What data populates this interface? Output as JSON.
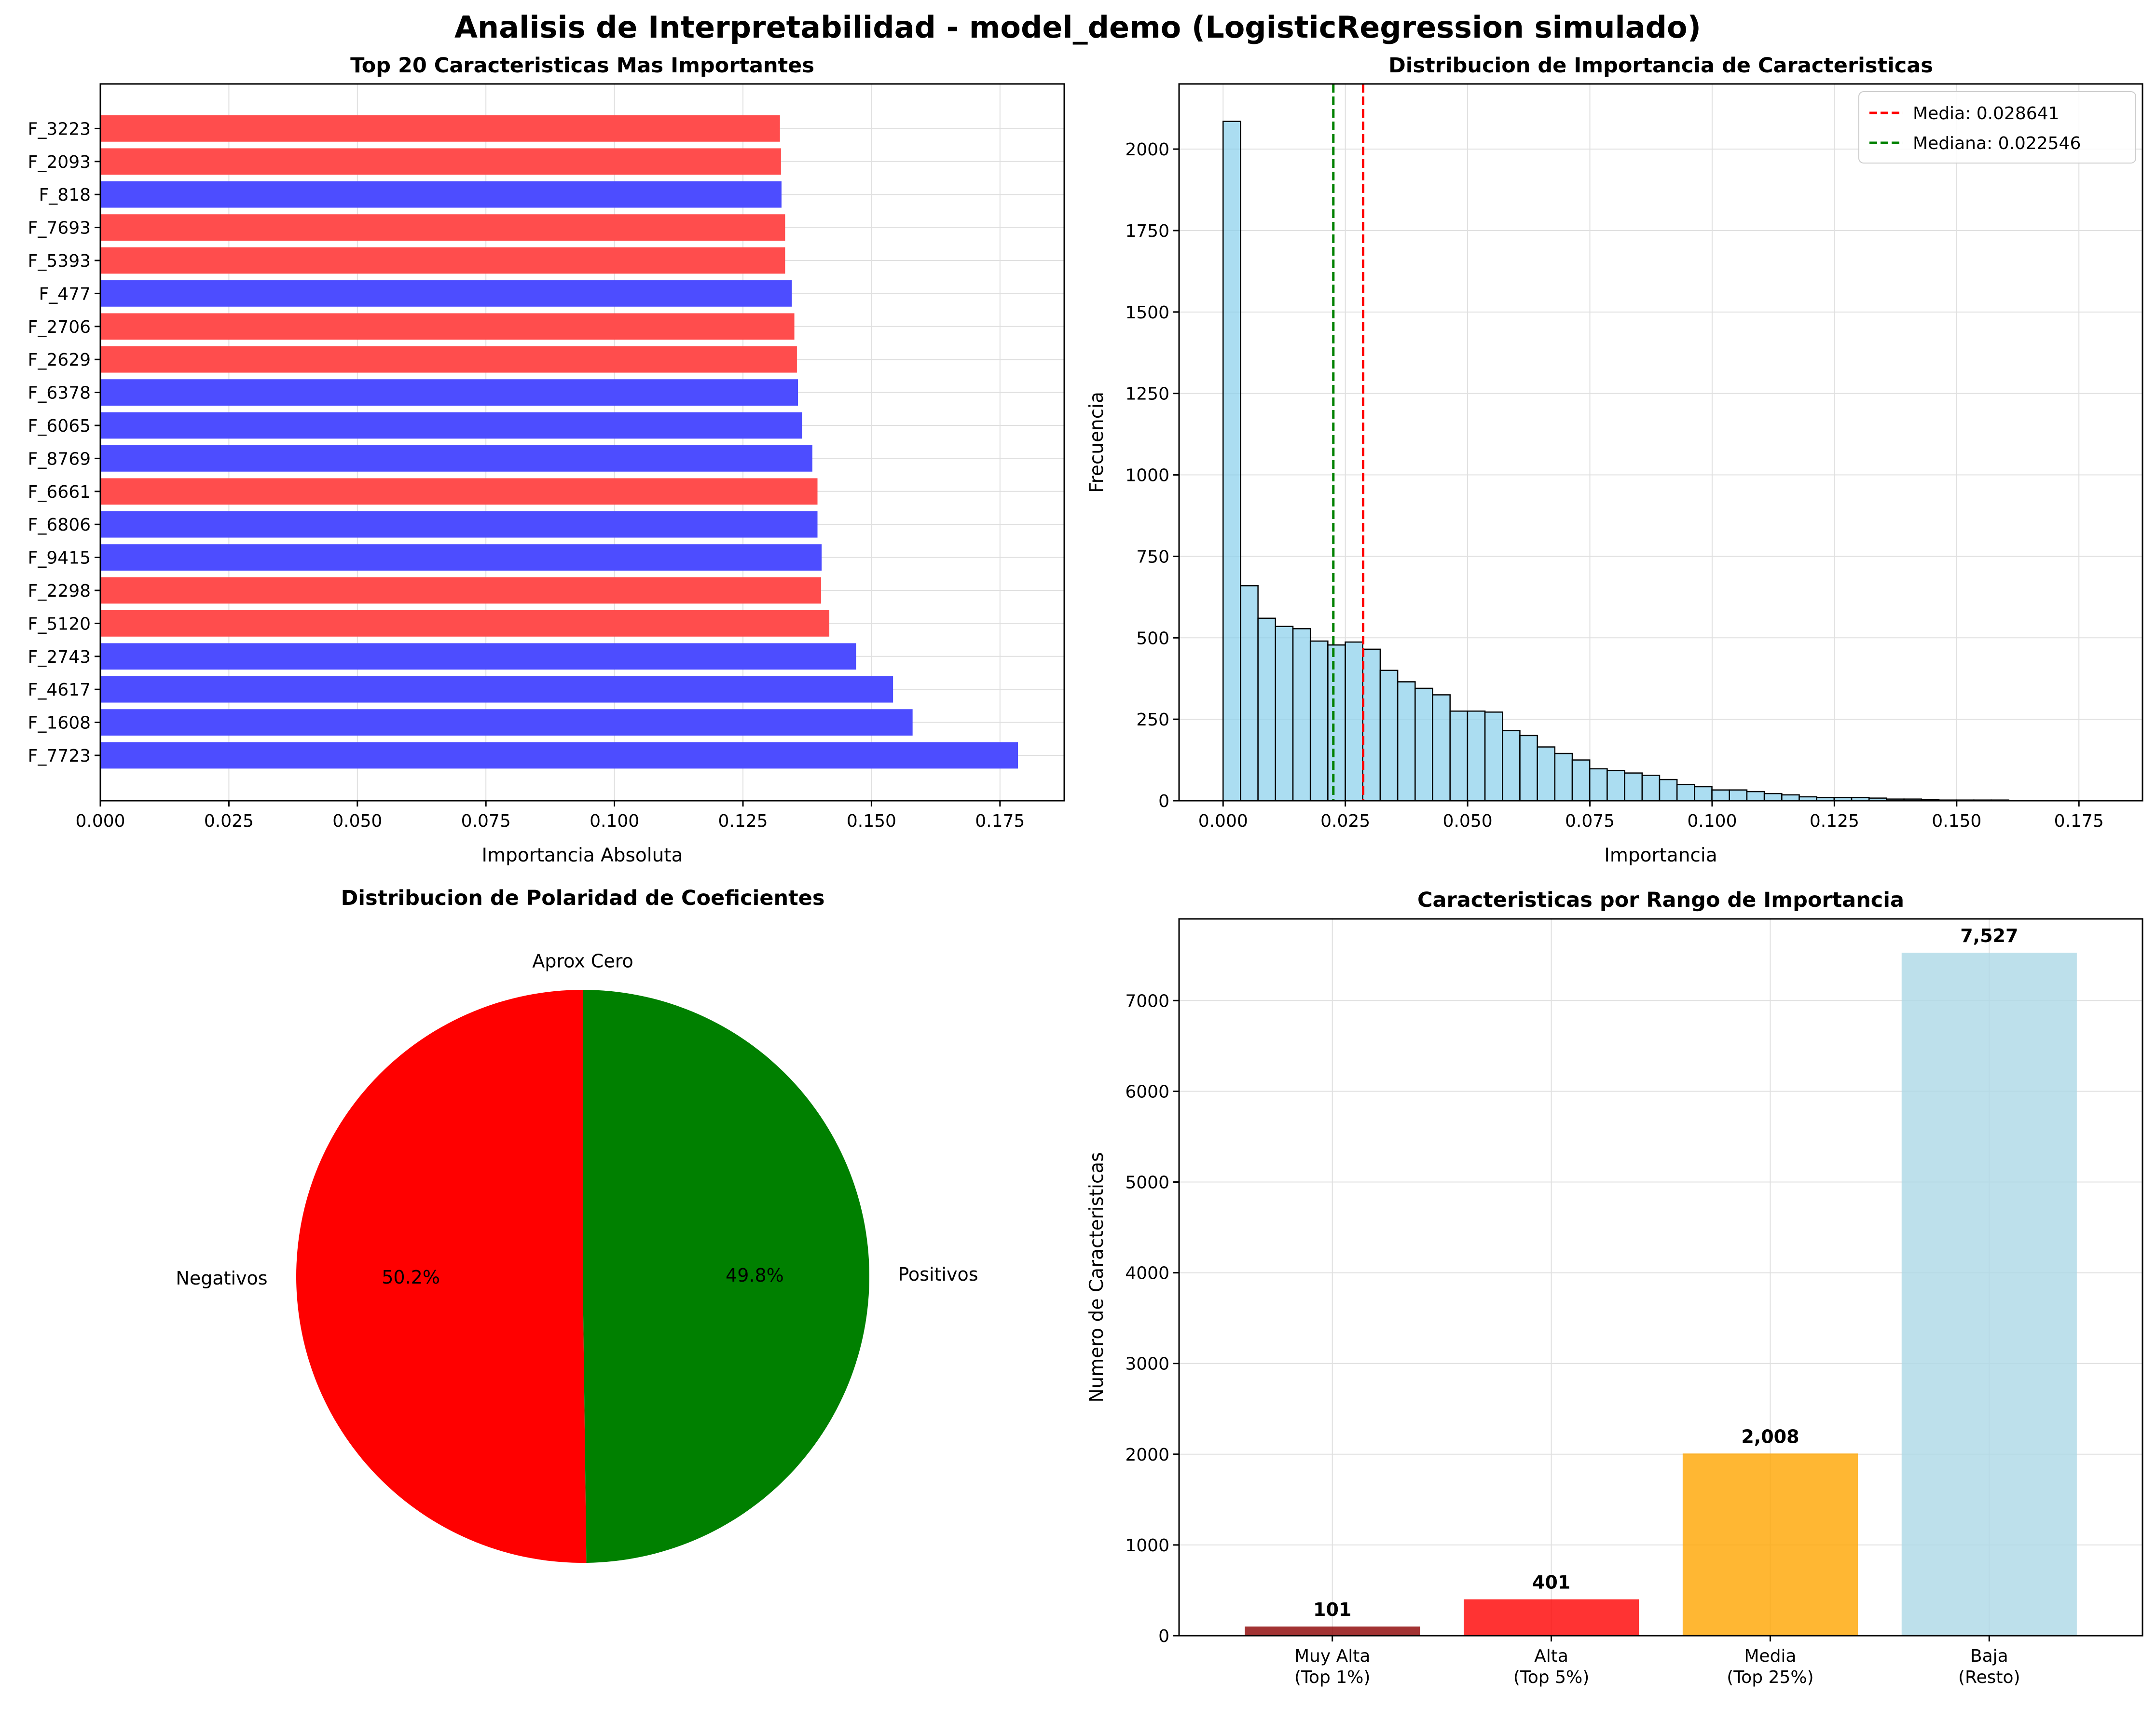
{
  "suptitle": "Analisis de Interpretabilidad - model_demo (LogisticRegression simulado)",
  "colors": {
    "positive_bar": "#4d4dff",
    "negative_bar": "#ff4d4d",
    "hist_fill": "#87ceeb",
    "hist_edge": "#000000",
    "mean_line": "#ff0000",
    "median_line": "#008000",
    "pie_positive": "#008000",
    "pie_negative": "#ff0000",
    "pie_zero": "#808080",
    "range_very_high": "#8b0000",
    "range_high": "#ff0000",
    "range_medium": "#ffa500",
    "range_low": "#add8e6",
    "grid": "#e0e0e0"
  },
  "chart_data": [
    {
      "id": "top20",
      "type": "bar",
      "orientation": "horizontal",
      "title": "Top 20 Caracteristicas Mas Importantes",
      "xlabel": "Importancia Absoluta",
      "ylabel": "",
      "xlim": [
        0,
        0.1875
      ],
      "xticks": [
        0.0,
        0.025,
        0.05,
        0.075,
        0.1,
        0.125,
        0.15,
        0.175
      ],
      "xtick_labels": [
        "0.000",
        "0.025",
        "0.050",
        "0.075",
        "0.100",
        "0.125",
        "0.150",
        "0.175"
      ],
      "grid": true,
      "categories": [
        "F_7723",
        "F_1608",
        "F_4617",
        "F_2743",
        "F_5120",
        "F_2298",
        "F_9415",
        "F_6806",
        "F_6661",
        "F_8769",
        "F_6065",
        "F_6378",
        "F_2629",
        "F_2706",
        "F_477",
        "F_5393",
        "F_7693",
        "F_818",
        "F_2093",
        "F_3223"
      ],
      "values": [
        0.1785,
        0.158,
        0.1542,
        0.147,
        0.1418,
        0.1402,
        0.1403,
        0.1395,
        0.1395,
        0.1385,
        0.1365,
        0.1357,
        0.1355,
        0.135,
        0.1345,
        0.1332,
        0.1332,
        0.1325,
        0.1324,
        0.1322
      ],
      "sign": [
        "pos",
        "pos",
        "pos",
        "pos",
        "neg",
        "neg",
        "pos",
        "pos",
        "neg",
        "pos",
        "pos",
        "pos",
        "neg",
        "neg",
        "pos",
        "neg",
        "neg",
        "pos",
        "neg",
        "neg"
      ]
    },
    {
      "id": "histogram",
      "type": "histogram",
      "title": "Distribucion de Importancia de Caracteristicas",
      "xlabel": "Importancia",
      "ylabel": "Frecuencia",
      "xlim": [
        -0.009,
        0.188
      ],
      "ylim": [
        0,
        2200
      ],
      "xticks": [
        0.0,
        0.025,
        0.05,
        0.075,
        0.1,
        0.125,
        0.15,
        0.175
      ],
      "xtick_labels": [
        "0.000",
        "0.025",
        "0.050",
        "0.075",
        "0.100",
        "0.125",
        "0.150",
        "0.175"
      ],
      "yticks": [
        0,
        250,
        500,
        750,
        1000,
        1250,
        1500,
        1750,
        2000
      ],
      "bin_start": 0.0,
      "bin_width": 0.00357,
      "counts": [
        2085,
        660,
        560,
        535,
        528,
        490,
        478,
        487,
        465,
        400,
        365,
        345,
        325,
        275,
        275,
        272,
        215,
        200,
        165,
        145,
        125,
        98,
        93,
        85,
        78,
        65,
        50,
        43,
        33,
        33,
        28,
        22,
        18,
        12,
        10,
        10,
        10,
        8,
        5,
        5,
        3,
        2,
        2,
        2,
        2,
        1,
        0,
        0,
        1,
        1
      ],
      "grid": true,
      "legend_position": "top-right",
      "legend": [
        {
          "label": "Media: 0.028641",
          "value": 0.028641,
          "style": "dashed",
          "color": "#ff0000"
        },
        {
          "label": "Mediana: 0.022546",
          "value": 0.022546,
          "style": "dashed",
          "color": "#008000"
        }
      ]
    },
    {
      "id": "polarity",
      "type": "pie",
      "title": "Distribucion de Polaridad de Coeficientes",
      "slices": [
        {
          "label": "Aprox Cero",
          "value": 0.0,
          "pct_label": "0.0%",
          "color": "#808080"
        },
        {
          "label": "Negativos",
          "value": 50.2,
          "pct_label": "50.2%",
          "color": "#ff0000"
        },
        {
          "label": "Positivos",
          "value": 49.8,
          "pct_label": "49.8%",
          "color": "#008000"
        }
      ]
    },
    {
      "id": "ranges",
      "type": "bar",
      "title": "Caracteristicas por Rango de Importancia",
      "xlabel": "",
      "ylabel": "Numero de Caracteristicas",
      "ylim": [
        0,
        7900
      ],
      "yticks": [
        0,
        1000,
        2000,
        3000,
        4000,
        5000,
        6000,
        7000
      ],
      "grid": true,
      "categories": [
        "Muy Alta\n(Top 1%)",
        "Alta\n(Top 5%)",
        "Media\n(Top 25%)",
        "Baja\n(Resto)"
      ],
      "values": [
        101,
        401,
        2008,
        7527
      ],
      "value_labels": [
        "101",
        "401",
        "2,008",
        "7,527"
      ]
    }
  ]
}
